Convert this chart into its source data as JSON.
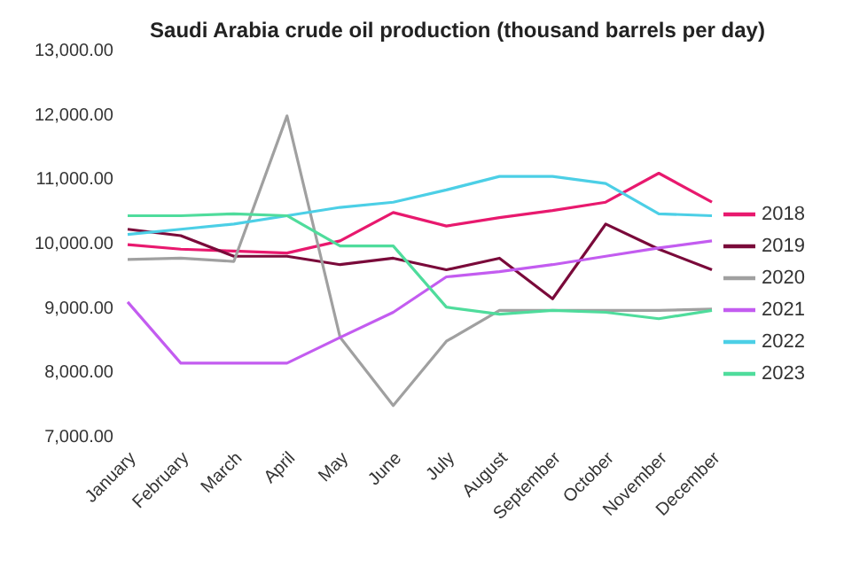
{
  "chart_data": {
    "type": "line",
    "title": "Saudi Arabia crude oil production (thousand barrels per day)",
    "categories": [
      "January",
      "February",
      "March",
      "April",
      "May",
      "June",
      "July",
      "August",
      "September",
      "October",
      "November",
      "December"
    ],
    "series": [
      {
        "name": "2018",
        "color": "#e8196e",
        "values": [
          9970,
          9900,
          9870,
          9840,
          10030,
          10470,
          10260,
          10390,
          10500,
          10630,
          11080,
          10630
        ]
      },
      {
        "name": "2019",
        "color": "#7a0a3a",
        "values": [
          10210,
          10110,
          9790,
          9790,
          9660,
          9760,
          9580,
          9760,
          9130,
          10290,
          9900,
          9580
        ]
      },
      {
        "name": "2020",
        "color": "#a0a0a0",
        "values": [
          9740,
          9760,
          9710,
          11970,
          8530,
          7470,
          8470,
          8950,
          8950,
          8950,
          8950,
          8970
        ]
      },
      {
        "name": "2021",
        "color": "#c35cf0",
        "values": [
          9080,
          8130,
          8130,
          8130,
          8530,
          8920,
          9470,
          9550,
          9660,
          9790,
          9920,
          10030
        ]
      },
      {
        "name": "2022",
        "color": "#4ccfe6",
        "values": [
          10130,
          10210,
          10290,
          10420,
          10550,
          10630,
          10820,
          11030,
          11030,
          10920,
          10450,
          10420
        ]
      },
      {
        "name": "2023",
        "color": "#4fdc9c",
        "values": [
          10420,
          10420,
          10450,
          10420,
          9950,
          9950,
          9000,
          8890,
          8950,
          8920,
          8820,
          8950
        ]
      }
    ],
    "ylim": [
      7000,
      13000
    ],
    "yticks": [
      {
        "value": 7000,
        "label": "7,000.00"
      },
      {
        "value": 8000,
        "label": "8,000.00"
      },
      {
        "value": 9000,
        "label": "9,000.00"
      },
      {
        "value": 10000,
        "label": "10,000.00"
      },
      {
        "value": 11000,
        "label": "11,000.00"
      },
      {
        "value": 12000,
        "label": "12,000.00"
      },
      {
        "value": 13000,
        "label": "13,000.00"
      }
    ],
    "legend": "right",
    "marker": "none"
  }
}
